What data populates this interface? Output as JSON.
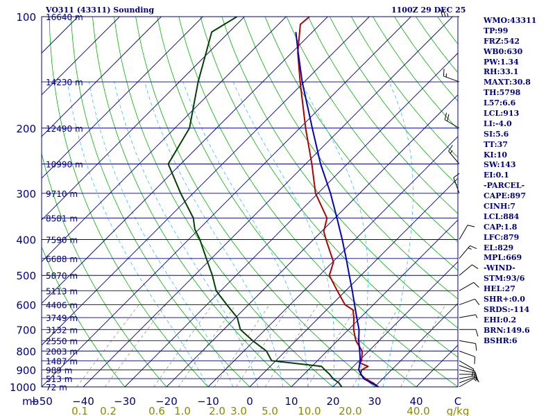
{
  "header": {
    "station": "VO311 (43311) Sounding",
    "datetime": "1100Z 29 DEC 25"
  },
  "indices": [
    "WMO:43311",
    "TP:99",
    "FRZ:542",
    "WB0:630",
    "PW:1.34",
    "RH:33.1",
    "MAXT:30.8",
    "TH:5798",
    "L57:6.6",
    "LCL:913",
    "LI:-4.0",
    "SI:5.6",
    "TT:37",
    "KI:10",
    "SW:143",
    "EI:0.1",
    "-PARCEL-",
    "CAPE:897",
    "CINH:7",
    "LCL:884",
    "CAP:1.8",
    "LFC:879",
    "EL:829",
    "MPL:669",
    "-WIND-",
    "STM:93/6",
    "HEL:27",
    "SHR+:0.0",
    "SRDS:-114",
    "EHI:0.2",
    "BRN:149.6",
    "BSHR:6"
  ],
  "colors": {
    "isobar": "#000080",
    "isotherm": "#000080",
    "dry_adiabat": "#00b000",
    "moist_adiabat": "#33bbff",
    "mixing_ratio": "#8a8a5a",
    "temperature": "#b00000",
    "dewpoint": "#004000",
    "parcel": "#0000c0",
    "axis_text": "#000080",
    "mixing_text": "#8a8a00"
  },
  "chart_data": {
    "type": "skew-t log-p",
    "title": "VO311 (43311) Sounding",
    "xlabel": "",
    "ylabel": "mb",
    "ylim": [
      1000,
      100
    ],
    "xlim": [
      -50,
      50
    ],
    "y_scale": "log",
    "pressure_ticks": [
      100,
      200,
      300,
      400,
      500,
      600,
      700,
      800,
      900,
      1000
    ],
    "temperature_ticks": [
      -50,
      -40,
      -30,
      -20,
      -10,
      0,
      10,
      20,
      30,
      40
    ],
    "mixing_ratio_ticks": [
      "0.1",
      "0.2",
      "0.6",
      "1.0",
      "2.0",
      "3.0",
      "5.0",
      "10.0",
      "20.0",
      "40.0"
    ],
    "mixing_ratio_unit": "g/kg",
    "heights": [
      {
        "p": 100,
        "label": "16640 m"
      },
      {
        "p": 150,
        "label": "14230 m"
      },
      {
        "p": 200,
        "label": "12490 m"
      },
      {
        "p": 250,
        "label": "10990 m"
      },
      {
        "p": 300,
        "label": "9710 m"
      },
      {
        "p": 350,
        "label": "8581 m"
      },
      {
        "p": 400,
        "label": "7590 m"
      },
      {
        "p": 450,
        "label": "6688 m"
      },
      {
        "p": 500,
        "label": "5870 m"
      },
      {
        "p": 550,
        "label": "5113 m"
      },
      {
        "p": 600,
        "label": "4406 m"
      },
      {
        "p": 650,
        "label": "3749 m"
      },
      {
        "p": 700,
        "label": "3132 m"
      },
      {
        "p": 750,
        "label": "2550 m"
      },
      {
        "p": 800,
        "label": "2003 m"
      },
      {
        "p": 850,
        "label": "1487 m"
      },
      {
        "p": 900,
        "label": "989 m"
      },
      {
        "p": 950,
        "label": "513 m"
      },
      {
        "p": 1000,
        "label": "72 m"
      }
    ],
    "series": [
      {
        "key": "temperature",
        "values": [
          {
            "p": 1003,
            "t": 31.2
          },
          {
            "p": 975,
            "t": 28.6
          },
          {
            "p": 950,
            "t": 25.8
          },
          {
            "p": 925,
            "t": 23.6
          },
          {
            "p": 900,
            "t": 22.8
          },
          {
            "p": 880,
            "t": 23.5
          },
          {
            "p": 860,
            "t": 20.5
          },
          {
            "p": 850,
            "t": 20.6
          },
          {
            "p": 800,
            "t": 18.4
          },
          {
            "p": 750,
            "t": 14.4
          },
          {
            "p": 700,
            "t": 11.2
          },
          {
            "p": 650,
            "t": 8.4
          },
          {
            "p": 620,
            "t": 6.4
          },
          {
            "p": 600,
            "t": 3.2
          },
          {
            "p": 550,
            "t": -2.0
          },
          {
            "p": 500,
            "t": -7.6
          },
          {
            "p": 460,
            "t": -9.8
          },
          {
            "p": 400,
            "t": -17.0
          },
          {
            "p": 380,
            "t": -19.5
          },
          {
            "p": 350,
            "t": -21.9
          },
          {
            "p": 300,
            "t": -30.6
          },
          {
            "p": 250,
            "t": -38.5
          },
          {
            "p": 200,
            "t": -48.6
          },
          {
            "p": 150,
            "t": -61.0
          },
          {
            "p": 125,
            "t": -68.6
          },
          {
            "p": 105,
            "t": -74.7
          },
          {
            "p": 100,
            "t": -74.4
          }
        ]
      },
      {
        "key": "dewpoint",
        "values": [
          {
            "p": 1003,
            "t": 22.3
          },
          {
            "p": 975,
            "t": 20.4
          },
          {
            "p": 950,
            "t": 18.0
          },
          {
            "p": 925,
            "t": 16.2
          },
          {
            "p": 900,
            "t": 14.0
          },
          {
            "p": 880,
            "t": 12.3
          },
          {
            "p": 850,
            "t": -1.0
          },
          {
            "p": 800,
            "t": -4.6
          },
          {
            "p": 750,
            "t": -10.4
          },
          {
            "p": 700,
            "t": -16.0
          },
          {
            "p": 650,
            "t": -19.6
          },
          {
            "p": 600,
            "t": -25.2
          },
          {
            "p": 550,
            "t": -31.1
          },
          {
            "p": 500,
            "t": -35.7
          },
          {
            "p": 450,
            "t": -41.2
          },
          {
            "p": 400,
            "t": -47.3
          },
          {
            "p": 375,
            "t": -51.0
          },
          {
            "p": 350,
            "t": -54.0
          },
          {
            "p": 300,
            "t": -63.0
          },
          {
            "p": 250,
            "t": -73.0
          },
          {
            "p": 200,
            "t": -76.5
          },
          {
            "p": 150,
            "t": -85.5
          },
          {
            "p": 110,
            "t": -94.2
          },
          {
            "p": 100,
            "t": -91.8
          }
        ]
      },
      {
        "key": "parcel",
        "values": [
          {
            "p": 1003,
            "t": 31.2
          },
          {
            "p": 950,
            "t": 25.4
          },
          {
            "p": 900,
            "t": 22.1
          },
          {
            "p": 850,
            "t": 20.3
          },
          {
            "p": 800,
            "t": 17.8
          },
          {
            "p": 750,
            "t": 15.1
          },
          {
            "p": 700,
            "t": 12.5
          },
          {
            "p": 650,
            "t": 9.1
          },
          {
            "p": 600,
            "t": 5.5
          },
          {
            "p": 550,
            "t": 1.6
          },
          {
            "p": 500,
            "t": -2.8
          },
          {
            "p": 450,
            "t": -7.6
          },
          {
            "p": 400,
            "t": -13.1
          },
          {
            "p": 350,
            "t": -19.5
          },
          {
            "p": 300,
            "t": -27.0
          },
          {
            "p": 250,
            "t": -36.4
          },
          {
            "p": 200,
            "t": -47.0
          },
          {
            "p": 150,
            "t": -60.5
          },
          {
            "p": 125,
            "t": -68.5
          },
          {
            "p": 110,
            "t": -74.0
          }
        ]
      }
    ],
    "wind_barbs": [
      {
        "p": 1000,
        "dir": 60,
        "speed": 5
      },
      {
        "p": 975,
        "dir": 70,
        "speed": 5
      },
      {
        "p": 950,
        "dir": 80,
        "speed": 10
      },
      {
        "p": 925,
        "dir": 90,
        "speed": 10
      },
      {
        "p": 900,
        "dir": 100,
        "speed": 10
      },
      {
        "p": 875,
        "dir": 110,
        "speed": 10
      },
      {
        "p": 850,
        "dir": 120,
        "speed": 10
      },
      {
        "p": 800,
        "dir": 110,
        "speed": 10
      },
      {
        "p": 750,
        "dir": 100,
        "speed": 10
      },
      {
        "p": 700,
        "dir": 90,
        "speed": 10
      },
      {
        "p": 650,
        "dir": 80,
        "speed": 5
      },
      {
        "p": 600,
        "dir": 70,
        "speed": 10
      },
      {
        "p": 550,
        "dir": 60,
        "speed": 10
      },
      {
        "p": 500,
        "dir": 50,
        "speed": 10
      },
      {
        "p": 450,
        "dir": 40,
        "speed": 15
      },
      {
        "p": 400,
        "dir": 30,
        "speed": 10
      },
      {
        "p": 300,
        "dir": 340,
        "speed": 10
      },
      {
        "p": 250,
        "dir": 320,
        "speed": 15
      },
      {
        "p": 200,
        "dir": 300,
        "speed": 20
      },
      {
        "p": 150,
        "dir": 290,
        "speed": 15
      },
      {
        "p": 100,
        "dir": 270,
        "speed": 25
      }
    ]
  }
}
